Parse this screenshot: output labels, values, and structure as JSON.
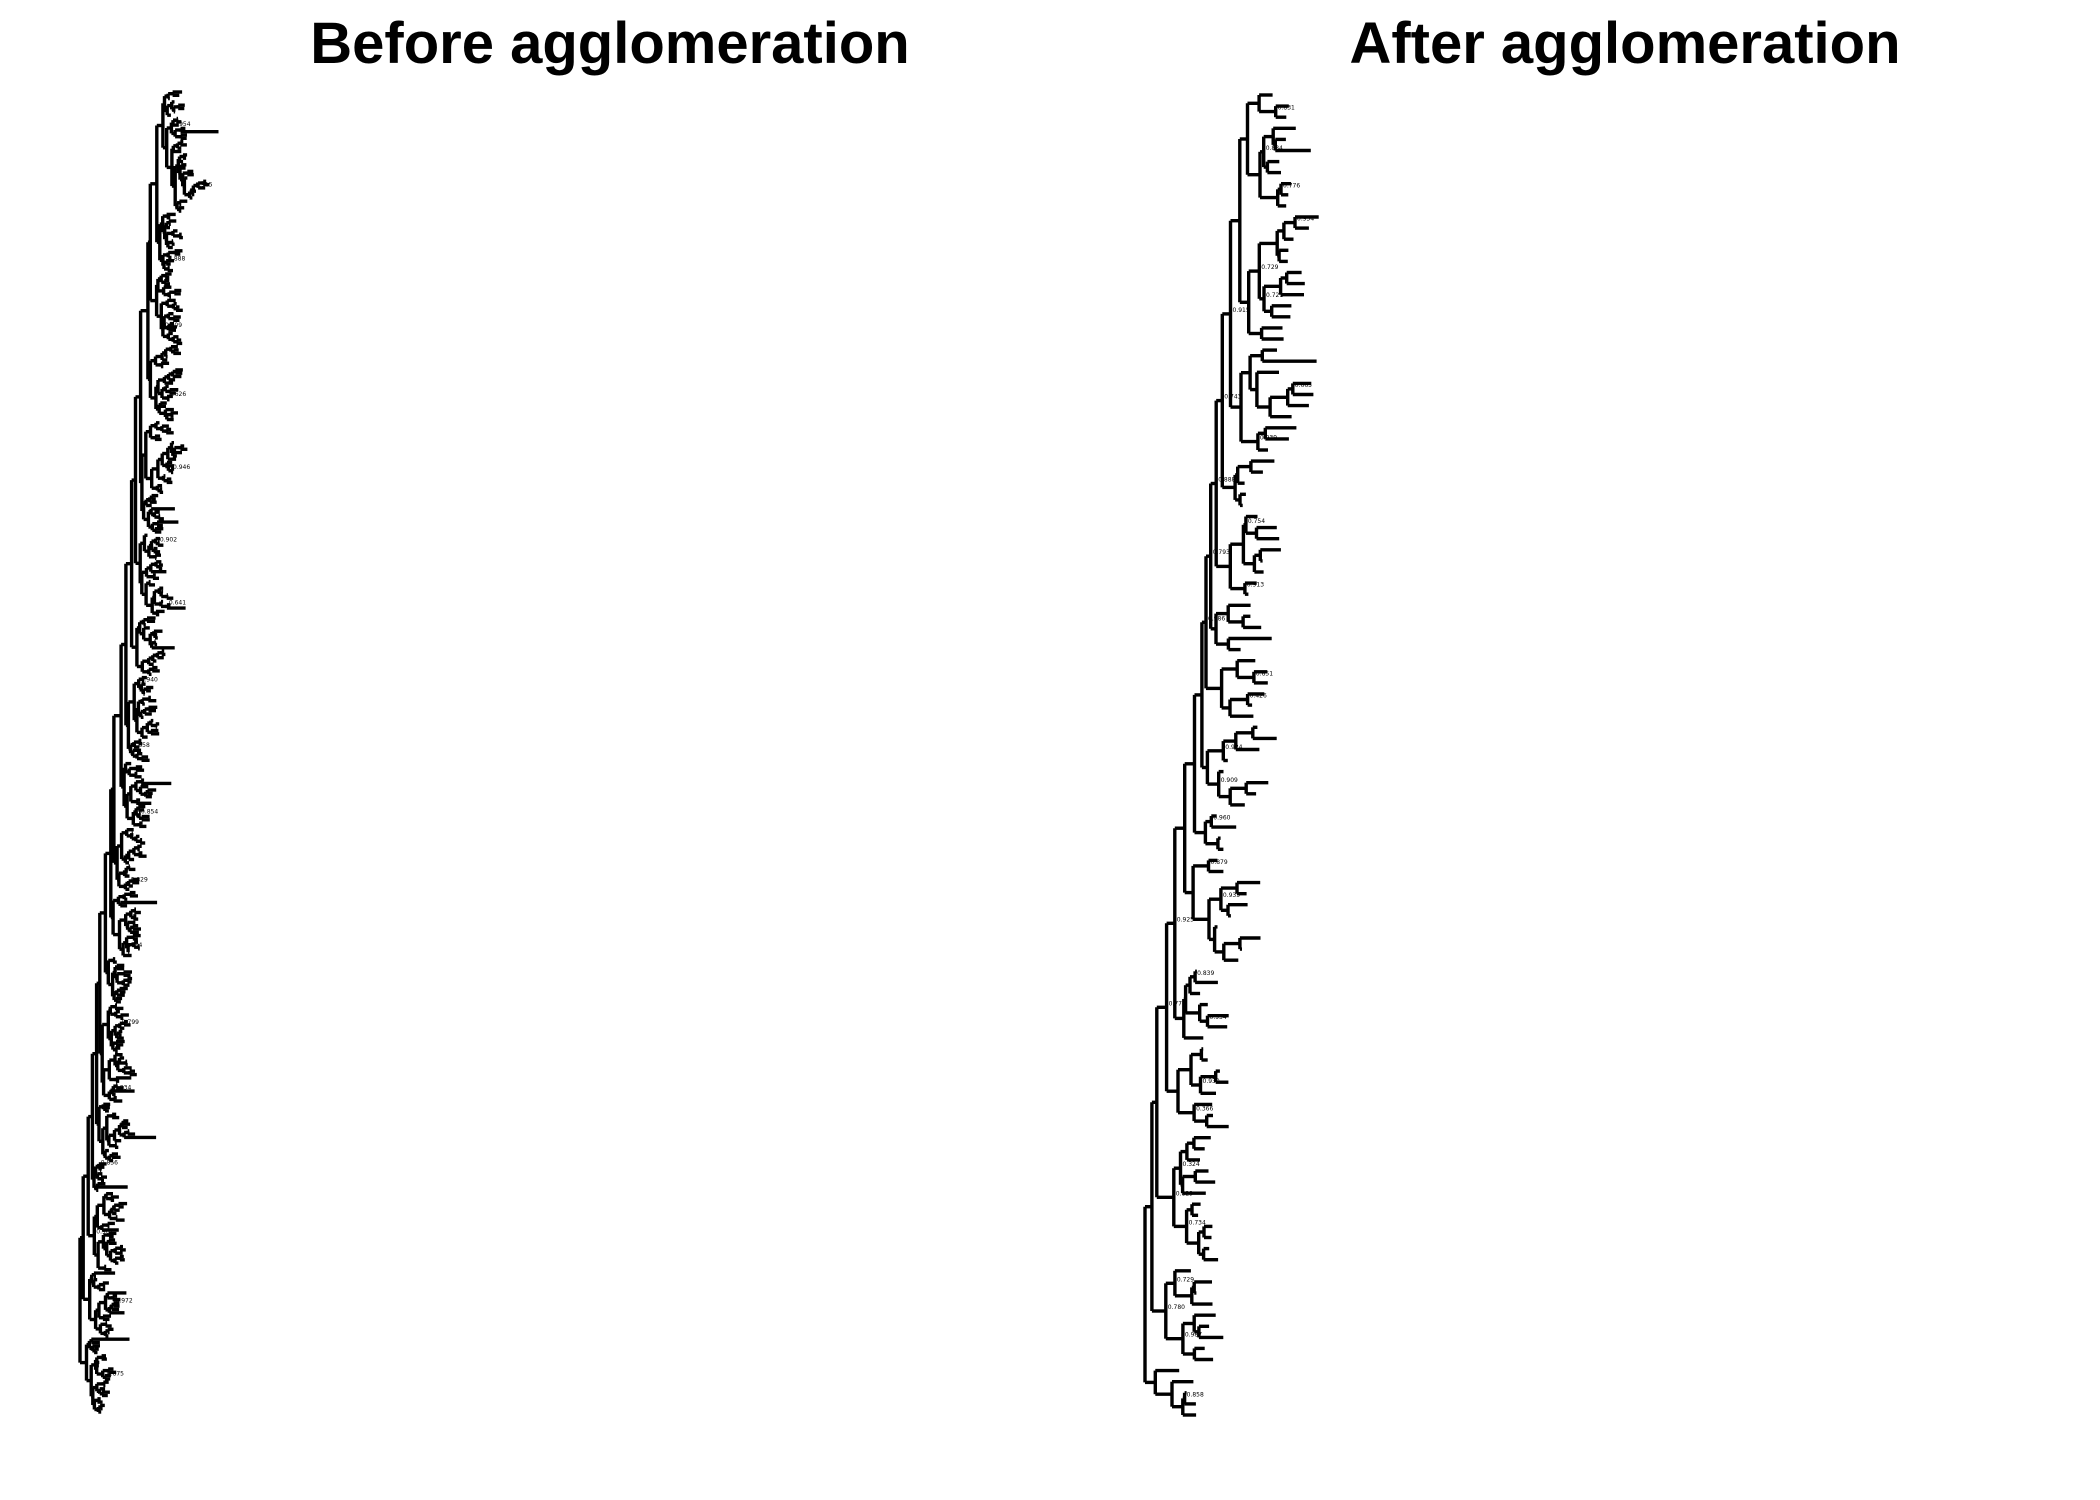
{
  "figure": {
    "colors": {
      "background": "#ffffff",
      "branch": "#000000",
      "text": "#000000"
    }
  },
  "panels": {
    "before": {
      "title": "Before agglomeration",
      "tip_count": 400,
      "node_support_labels": [
        "0.954",
        "0.915",
        "0.888",
        "0.909",
        "0.626",
        "0.946",
        "0.902",
        "0.641",
        "0.940",
        "0.658",
        "0.854",
        "0.829",
        "0.734",
        "0.799",
        "0.934",
        "0.856",
        "0.961",
        "0.972",
        "0.875"
      ]
    },
    "after": {
      "title": "After agglomeration",
      "tip_count": 120,
      "node_support_labels": [
        "0.831",
        "0.834",
        "0.776",
        "0.954",
        "0.729",
        "0.721",
        "0.915",
        "0.665",
        "0.743",
        "0.939",
        "0.888",
        "0.754",
        "0.793",
        "0.913",
        "0.986",
        "0.851",
        "0.426",
        "0.924",
        "0.909",
        "0.960",
        "0.879",
        "0.935",
        "0.925",
        "0.839",
        "0.776",
        "0.934",
        "0.930",
        "0.366",
        "0.324",
        "0.829",
        "0.734",
        "0.729",
        "0.780",
        "0.987",
        "0.858"
      ]
    }
  }
}
